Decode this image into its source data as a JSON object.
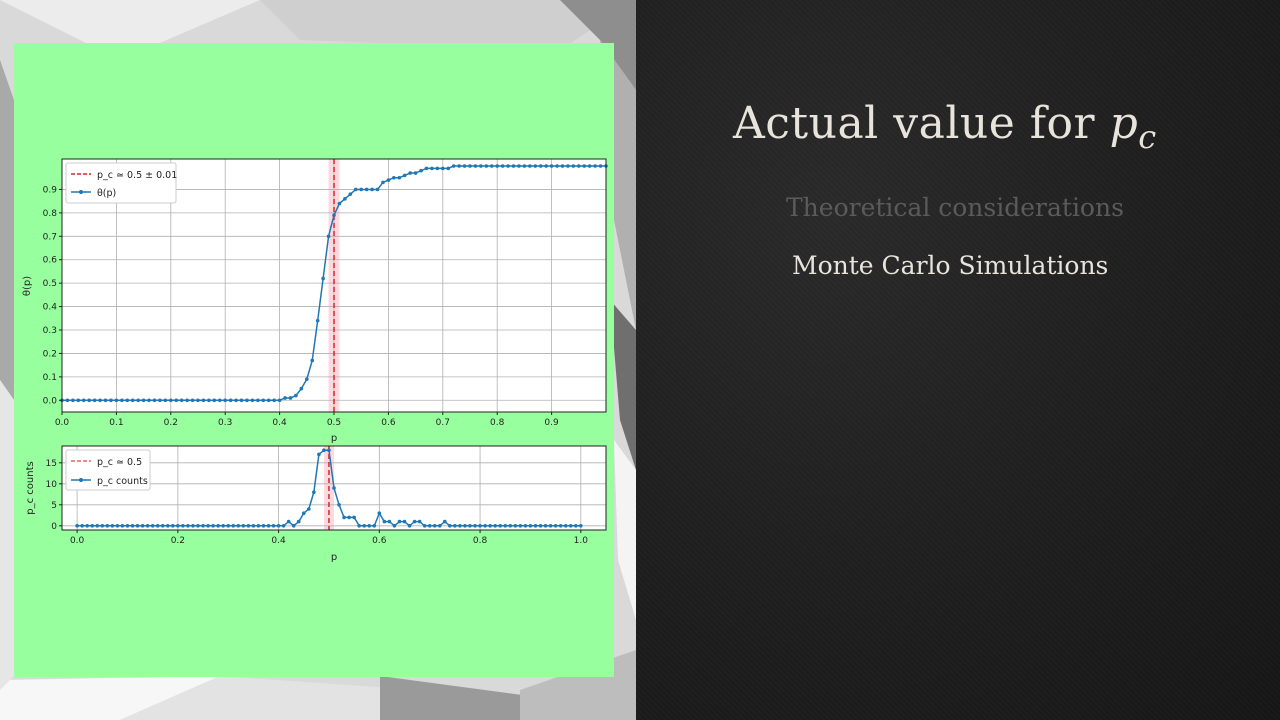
{
  "slide": {
    "title_prefix": "Actual value for ",
    "title_var": "p",
    "title_sub": "c",
    "bullets": [
      "Theoretical considerations",
      "Monte Carlo Simulations"
    ]
  },
  "colors": {
    "line": "#1f77b4",
    "ref": "#d62728",
    "band": "#ffc0cb",
    "card": "#98ff9e"
  },
  "chart_data": [
    {
      "type": "line",
      "xlabel": "p",
      "ylabel": "θ(p)",
      "xlim": [
        0,
        1.0
      ],
      "ylim": [
        -0.05,
        1.03
      ],
      "xticks": [
        "0.0",
        "0.1",
        "0.2",
        "0.3",
        "0.4",
        "0.5",
        "0.6",
        "0.7",
        "0.8",
        "0.9"
      ],
      "yticks": [
        "0.0",
        "0.1",
        "0.2",
        "0.3",
        "0.4",
        "0.5",
        "0.6",
        "0.7",
        "0.8",
        "0.9"
      ],
      "grid": true,
      "legend_position": "top-left",
      "reference_line": {
        "x": 0.5,
        "band": [
          0.49,
          0.51
        ],
        "label": "p_c ≃ 0.5 ± 0.01"
      },
      "series": [
        {
          "name": "θ(p)",
          "x": [
            0.0,
            0.01,
            0.02,
            0.03,
            0.04,
            0.05,
            0.06,
            0.07,
            0.08,
            0.09,
            0.1,
            0.11,
            0.12,
            0.13,
            0.14,
            0.15,
            0.16,
            0.17,
            0.18,
            0.19,
            0.2,
            0.21,
            0.22,
            0.23,
            0.24,
            0.25,
            0.26,
            0.27,
            0.28,
            0.29,
            0.3,
            0.31,
            0.32,
            0.33,
            0.34,
            0.35,
            0.36,
            0.37,
            0.38,
            0.39,
            0.4,
            0.41,
            0.42,
            0.43,
            0.44,
            0.45,
            0.46,
            0.47,
            0.48,
            0.49,
            0.5,
            0.51,
            0.52,
            0.53,
            0.54,
            0.55,
            0.56,
            0.57,
            0.58,
            0.59,
            0.6,
            0.61,
            0.62,
            0.63,
            0.64,
            0.65,
            0.66,
            0.67,
            0.68,
            0.69,
            0.7,
            0.71,
            0.72,
            0.73,
            0.74,
            0.75,
            0.76,
            0.77,
            0.78,
            0.79,
            0.8,
            0.81,
            0.82,
            0.83,
            0.84,
            0.85,
            0.86,
            0.87,
            0.88,
            0.89,
            0.9,
            0.91,
            0.92,
            0.93,
            0.94,
            0.95,
            0.96,
            0.97,
            0.98,
            0.99,
            1.0
          ],
          "y": [
            0,
            0,
            0,
            0,
            0,
            0,
            0,
            0,
            0,
            0,
            0,
            0,
            0,
            0,
            0,
            0,
            0,
            0,
            0,
            0,
            0,
            0,
            0,
            0,
            0,
            0,
            0,
            0,
            0,
            0,
            0,
            0,
            0,
            0,
            0,
            0,
            0,
            0,
            0,
            0,
            0,
            0.01,
            0.01,
            0.02,
            0.05,
            0.09,
            0.17,
            0.34,
            0.52,
            0.7,
            0.79,
            0.84,
            0.86,
            0.88,
            0.9,
            0.9,
            0.9,
            0.9,
            0.9,
            0.93,
            0.94,
            0.95,
            0.95,
            0.96,
            0.97,
            0.97,
            0.98,
            0.99,
            0.99,
            0.99,
            0.99,
            0.99,
            1.0,
            1.0,
            1.0,
            1.0,
            1.0,
            1.0,
            1.0,
            1.0,
            1.0,
            1.0,
            1.0,
            1.0,
            1.0,
            1.0,
            1.0,
            1.0,
            1.0,
            1.0,
            1.0,
            1.0,
            1.0,
            1.0,
            1.0,
            1.0,
            1.0,
            1.0,
            1.0,
            1.0,
            1.0
          ]
        }
      ]
    },
    {
      "type": "line",
      "xlabel": "p",
      "ylabel": "p_c counts",
      "xlim": [
        -0.03,
        1.05
      ],
      "ylim": [
        -1,
        19
      ],
      "xticks": [
        "0.0",
        "0.2",
        "0.4",
        "0.6",
        "0.8",
        "1.0"
      ],
      "yticks": [
        "0",
        "5",
        "10",
        "15"
      ],
      "grid": true,
      "legend_position": "top-left",
      "reference_line": {
        "x": 0.5,
        "band": [
          0.49,
          0.51
        ],
        "label": "p_c ≃ 0.5"
      },
      "series": [
        {
          "name": "p_c counts",
          "x": [
            0.0,
            0.01,
            0.02,
            0.03,
            0.04,
            0.05,
            0.06,
            0.07,
            0.08,
            0.09,
            0.1,
            0.11,
            0.12,
            0.13,
            0.14,
            0.15,
            0.16,
            0.17,
            0.18,
            0.19,
            0.2,
            0.21,
            0.22,
            0.23,
            0.24,
            0.25,
            0.26,
            0.27,
            0.28,
            0.29,
            0.3,
            0.31,
            0.32,
            0.33,
            0.34,
            0.35,
            0.36,
            0.37,
            0.38,
            0.39,
            0.4,
            0.41,
            0.42,
            0.43,
            0.44,
            0.45,
            0.46,
            0.47,
            0.48,
            0.49,
            0.5,
            0.51,
            0.52,
            0.53,
            0.54,
            0.55,
            0.56,
            0.57,
            0.58,
            0.59,
            0.6,
            0.61,
            0.62,
            0.63,
            0.64,
            0.65,
            0.66,
            0.67,
            0.68,
            0.69,
            0.7,
            0.71,
            0.72,
            0.73,
            0.74,
            0.75,
            0.76,
            0.77,
            0.78,
            0.79,
            0.8,
            0.81,
            0.82,
            0.83,
            0.84,
            0.85,
            0.86,
            0.87,
            0.88,
            0.89,
            0.9,
            0.91,
            0.92,
            0.93,
            0.94,
            0.95,
            0.96,
            0.97,
            0.98,
            0.99,
            1.0
          ],
          "y": [
            0,
            0,
            0,
            0,
            0,
            0,
            0,
            0,
            0,
            0,
            0,
            0,
            0,
            0,
            0,
            0,
            0,
            0,
            0,
            0,
            0,
            0,
            0,
            0,
            0,
            0,
            0,
            0,
            0,
            0,
            0,
            0,
            0,
            0,
            0,
            0,
            0,
            0,
            0,
            0,
            0,
            0,
            1,
            0,
            1,
            3,
            4,
            8,
            17,
            18,
            18,
            9,
            5,
            2,
            2,
            2,
            0,
            0,
            0,
            0,
            3,
            1,
            1,
            0,
            1,
            1,
            0,
            1,
            1,
            0,
            0,
            0,
            0,
            1,
            0,
            0,
            0,
            0,
            0,
            0,
            0,
            0,
            0,
            0,
            0,
            0,
            0,
            0,
            0,
            0,
            0,
            0,
            0,
            0,
            0,
            0,
            0,
            0,
            0,
            0,
            0
          ]
        }
      ]
    }
  ]
}
